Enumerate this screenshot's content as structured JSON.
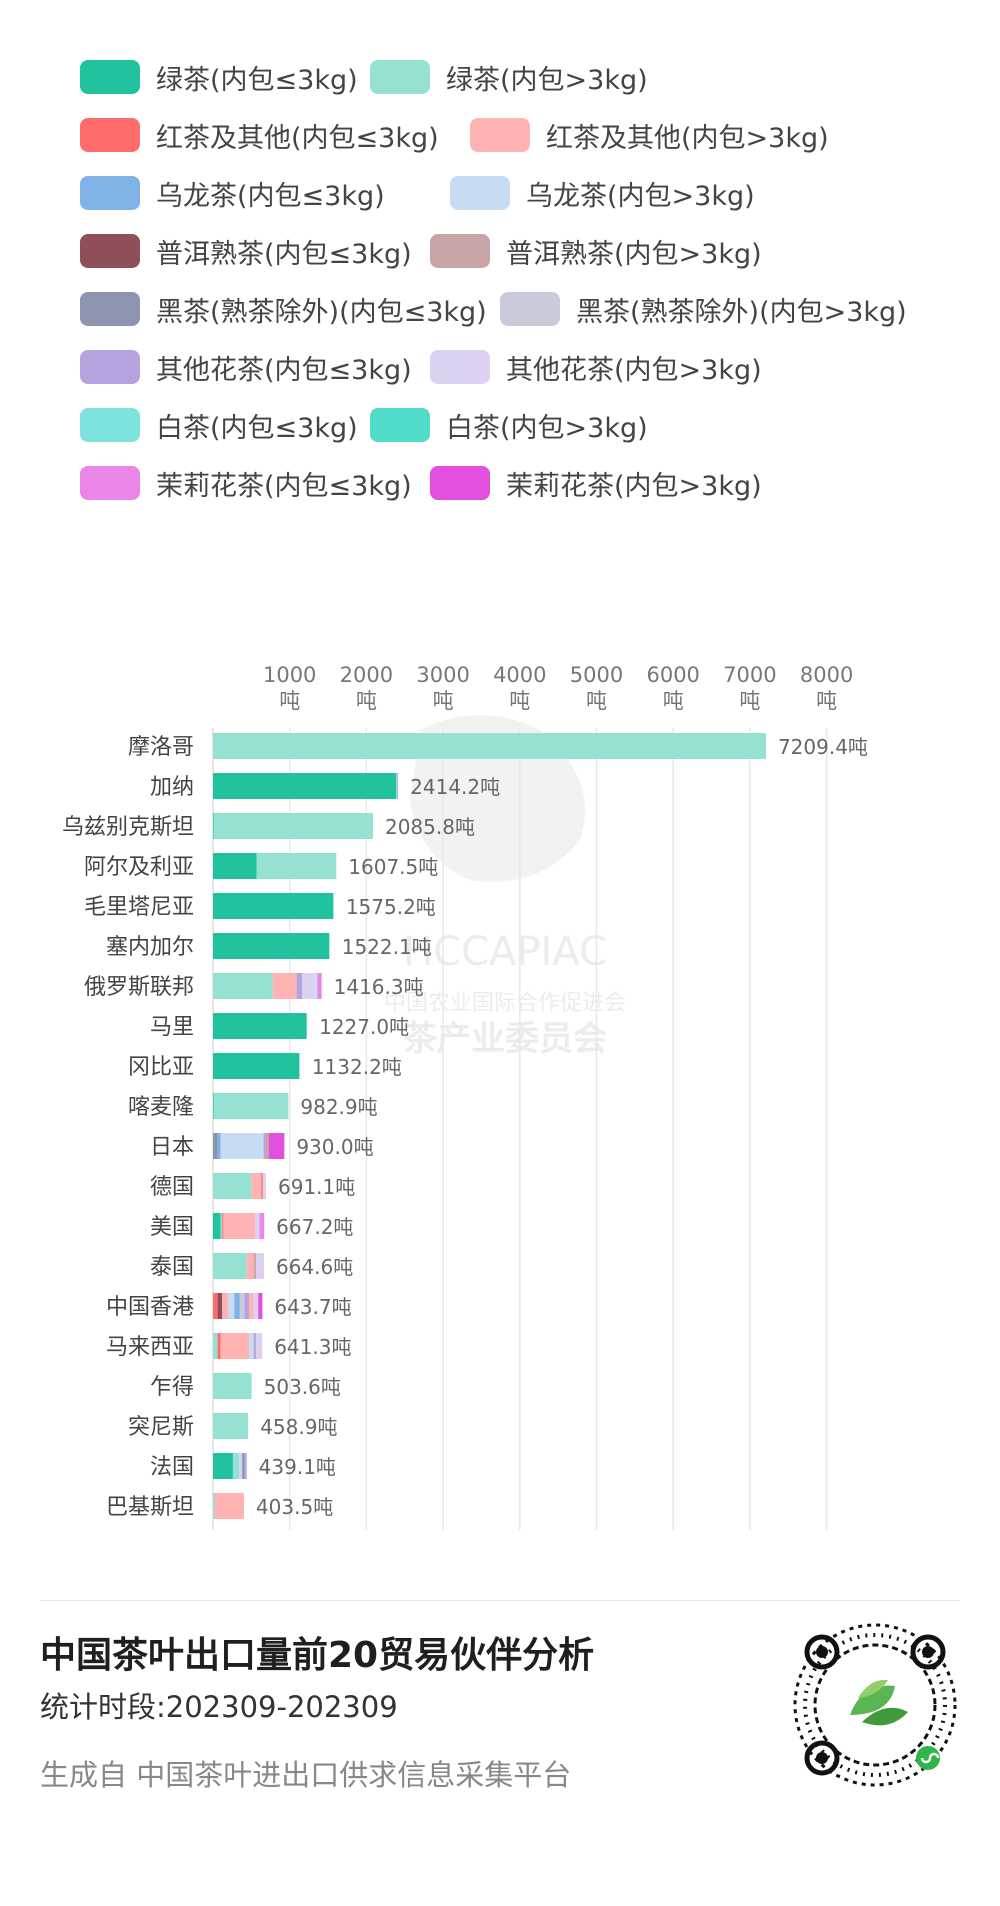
{
  "legend": [
    {
      "label": "绿茶(内包≤3kg)",
      "color": "#20c39e"
    },
    {
      "label": "绿茶(内包>3kg)",
      "color": "#96e2d2"
    },
    {
      "label": "红茶及其他(内包≤3kg)",
      "color": "#ff6b6b"
    },
    {
      "label": "红茶及其他(内包>3kg)",
      "color": "#ffb3b3"
    },
    {
      "label": "乌龙茶(内包≤3kg)",
      "color": "#7fb2e6"
    },
    {
      "label": "乌龙茶(内包>3kg)",
      "color": "#c5dcf3"
    },
    {
      "label": "普洱熟茶(内包≤3kg)",
      "color": "#8e4f58"
    },
    {
      "label": "普洱熟茶(内包>3kg)",
      "color": "#c9a4a6"
    },
    {
      "label": "黑茶(熟茶除外)(内包≤3kg)",
      "color": "#8c94b0"
    },
    {
      "label": "黑茶(熟茶除外)(内包>3kg)",
      "color": "#c9cbda"
    },
    {
      "label": "其他花茶(内包≤3kg)",
      "color": "#b5a2df"
    },
    {
      "label": "其他花茶(内包>3kg)",
      "color": "#dcd1f0"
    },
    {
      "label": "白茶(内包≤3kg)",
      "color": "#7ee3dc"
    },
    {
      "label": "白茶(内包>3kg)",
      "color": "#4fdccb"
    },
    {
      "label": "茉莉花茶(内包≤3kg)",
      "color": "#ea86e8"
    },
    {
      "label": "茉莉花茶(内包>3kg)",
      "color": "#e14fdc"
    }
  ],
  "chart_data": {
    "type": "bar",
    "orientation": "horizontal",
    "stacked": true,
    "x_ticks": [
      "1000",
      "2000",
      "3000",
      "4000",
      "5000",
      "6000",
      "7000",
      "8000"
    ],
    "x_tick_unit": "吨",
    "xlim": [
      0,
      8000
    ],
    "grid": true,
    "value_suffix": "吨",
    "watermark": {
      "latin": "HCCAPIAC",
      "line1": "中国农业国际合作促进会",
      "line2": "茶产业委员会"
    },
    "categories": [
      "摩洛哥",
      "加纳",
      "乌兹别克斯坦",
      "阿尔及利亚",
      "毛里塔尼亚",
      "塞内加尔",
      "俄罗斯联邦",
      "马里",
      "冈比亚",
      "喀麦隆",
      "日本",
      "德国",
      "美国",
      "泰国",
      "中国香港",
      "马来西亚",
      "乍得",
      "突尼斯",
      "法国",
      "巴基斯坦"
    ],
    "totals": [
      "7209.4",
      "2414.2",
      "2085.8",
      "1607.5",
      "1575.2",
      "1522.1",
      "1416.3",
      "1227.0",
      "1132.2",
      "982.9",
      "930.0",
      "691.1",
      "667.2",
      "664.6",
      "643.7",
      "641.3",
      "503.6",
      "458.9",
      "439.1",
      "403.5"
    ],
    "segments": [
      [
        [
          1,
          20
        ],
        [
          1,
          7189.4
        ]
      ],
      [
        [
          0,
          2390
        ],
        [
          1,
          14
        ],
        [
          10,
          10.2
        ]
      ],
      [
        [
          0,
          10
        ],
        [
          1,
          2075.8
        ]
      ],
      [
        [
          0,
          570
        ],
        [
          1,
          1037.5
        ]
      ],
      [
        [
          0,
          1565
        ],
        [
          1,
          10.2
        ]
      ],
      [
        [
          0,
          1515
        ],
        [
          1,
          7.1
        ]
      ],
      [
        [
          1,
          780
        ],
        [
          3,
          310
        ],
        [
          10,
          70
        ],
        [
          11,
          160
        ],
        [
          5,
          40
        ],
        [
          14,
          56.3
        ]
      ],
      [
        [
          0,
          1220
        ],
        [
          1,
          7
        ]
      ],
      [
        [
          0,
          1125
        ],
        [
          1,
          7.2
        ]
      ],
      [
        [
          0,
          10
        ],
        [
          1,
          972.9
        ]
      ],
      [
        [
          8,
          60
        ],
        [
          4,
          40
        ],
        [
          5,
          560
        ],
        [
          10,
          30
        ],
        [
          7,
          40
        ],
        [
          15,
          200
        ]
      ],
      [
        [
          1,
          500
        ],
        [
          3,
          130
        ],
        [
          2,
          20
        ],
        [
          11,
          41.1
        ]
      ],
      [
        [
          0,
          100
        ],
        [
          1,
          20
        ],
        [
          2,
          15
        ],
        [
          3,
          412
        ],
        [
          11,
          60
        ],
        [
          14,
          60.2
        ]
      ],
      [
        [
          1,
          440
        ],
        [
          3,
          90
        ],
        [
          7,
          30
        ],
        [
          11,
          104.6
        ]
      ],
      [
        [
          2,
          60
        ],
        [
          6,
          60
        ],
        [
          3,
          80
        ],
        [
          5,
          80
        ],
        [
          4,
          70
        ],
        [
          9,
          60
        ],
        [
          10,
          60
        ],
        [
          3,
          60
        ],
        [
          11,
          60
        ],
        [
          15,
          53.7
        ]
      ],
      [
        [
          1,
          60
        ],
        [
          2,
          40
        ],
        [
          3,
          370
        ],
        [
          5,
          60
        ],
        [
          10,
          30
        ],
        [
          11,
          81.3
        ]
      ],
      [
        [
          1,
          503.6
        ]
      ],
      [
        [
          1,
          458.9
        ]
      ],
      [
        [
          0,
          260
        ],
        [
          1,
          80
        ],
        [
          5,
          40
        ],
        [
          8,
          30
        ],
        [
          10,
          29.1
        ]
      ],
      [
        [
          1,
          20
        ],
        [
          3,
          383.5
        ]
      ]
    ]
  },
  "footer": {
    "title": "中国茶叶出口量前20贸易伙伴分析",
    "period": "统计时段:202309-202309",
    "source": "生成自 中国茶叶进出口供求信息采集平台"
  }
}
